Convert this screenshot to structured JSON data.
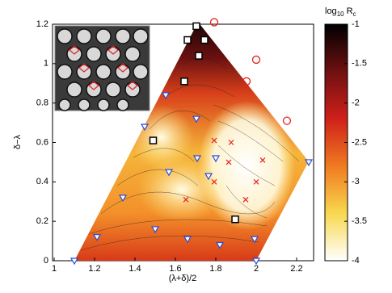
{
  "chart_data": {
    "type": "scatter",
    "xlabel": "(λ+δ)/2",
    "ylabel": "δ−λ",
    "xlim": [
      1,
      2.28
    ],
    "ylim": [
      0,
      1.2
    ],
    "xticks": [
      1,
      1.2,
      1.4,
      1.6,
      1.8,
      2,
      2.2
    ],
    "yticks": [
      0,
      0.2,
      0.4,
      0.6,
      0.8,
      1,
      1.2
    ],
    "colorbar": {
      "label": {
        "base": "log",
        "base_sub": "10",
        "var": "R",
        "var_sub": "c"
      },
      "clim": [
        -4,
        -1
      ],
      "ticks": [
        -1,
        -1.5,
        -2,
        -2.5,
        -3,
        -3.5,
        -4
      ]
    },
    "series": [
      {
        "marker": "square",
        "color": "#000000",
        "x": [
          1.704,
          1.66,
          1.744,
          1.716,
          1.644,
          1.49,
          1.896
        ],
        "y": [
          1.19,
          1.12,
          1.12,
          1.04,
          0.91,
          0.61,
          0.21
        ]
      },
      {
        "marker": "circle",
        "color": "#e8231c",
        "x": [
          1.792,
          2.0,
          1.952,
          2.152
        ],
        "y": [
          1.21,
          1.02,
          0.91,
          0.71
        ]
      },
      {
        "marker": "triangle",
        "color": "#2a4bd7",
        "x": [
          1.448,
          1.568,
          1.34,
          1.764,
          1.8,
          1.708,
          1.5,
          1.66,
          1.82,
          1.992,
          2.0,
          1.1,
          1.212,
          1.704,
          2.26,
          1.552
        ],
        "y": [
          0.68,
          0.45,
          0.32,
          0.43,
          0.52,
          0.52,
          0.16,
          0.11,
          0.08,
          0.11,
          0.0,
          0.0,
          0.12,
          0.72,
          0.5,
          0.84
        ]
      },
      {
        "marker": "cross",
        "color": "#e8231c",
        "x": [
          1.652,
          1.792,
          1.864,
          2.0,
          1.948,
          2.032,
          1.792,
          1.876
        ],
        "y": [
          0.31,
          0.61,
          0.5,
          0.4,
          0.31,
          0.51,
          0.4,
          0.6
        ]
      }
    ]
  }
}
